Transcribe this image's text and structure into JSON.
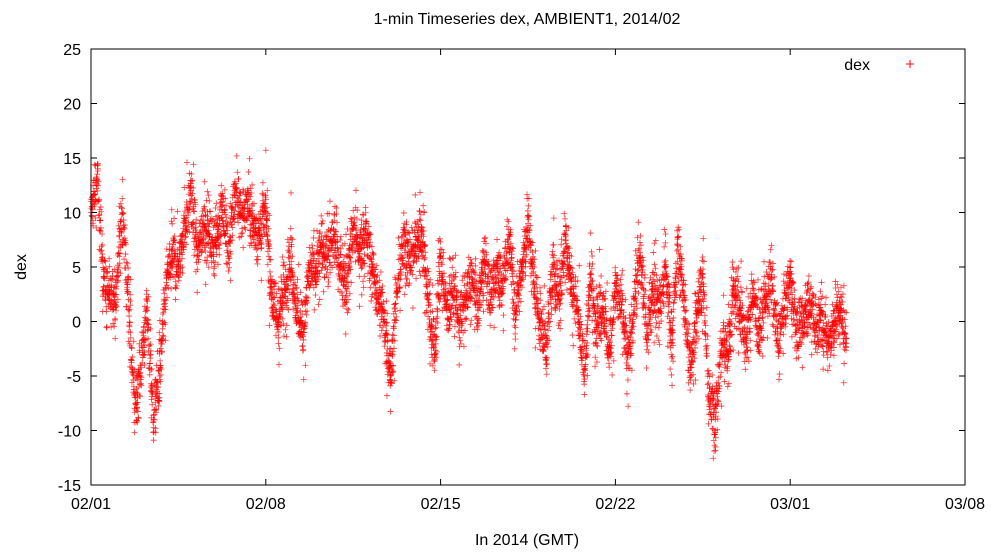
{
  "chart_data": {
    "type": "scatter",
    "title": "1-min Timeseries dex, AMBIENT1, 2014/02",
    "xlabel": "In 2014 (GMT)",
    "ylabel": "dex",
    "ylim": [
      -15,
      25
    ],
    "xlim": [
      "02/01",
      "03/08"
    ],
    "yticks": [
      -15,
      -10,
      -5,
      0,
      5,
      10,
      15,
      20,
      25
    ],
    "xticks": [
      "02/01",
      "02/08",
      "02/15",
      "02/22",
      "03/01",
      "03/08"
    ],
    "grid": false,
    "legend_position": "top-right",
    "marker": "+",
    "series": [
      {
        "name": "dex",
        "color": "#ff0000",
        "x": [
          "02/01 00:00",
          "02/01 06:00",
          "02/01 12:00",
          "02/01 18:00",
          "02/02 00:00",
          "02/02 06:00",
          "02/02 12:00",
          "02/02 18:00",
          "02/03 00:00",
          "02/03 06:00",
          "02/03 12:00",
          "02/03 18:00",
          "02/04 00:00",
          "02/04 06:00",
          "02/04 12:00",
          "02/04 18:00",
          "02/05 00:00",
          "02/05 06:00",
          "02/05 12:00",
          "02/05 18:00",
          "02/06 00:00",
          "02/06 06:00",
          "02/06 12:00",
          "02/06 18:00",
          "02/07 00:00",
          "02/07 06:00",
          "02/07 12:00",
          "02/07 18:00",
          "02/08 00:00",
          "02/08 06:00",
          "02/08 12:00",
          "02/08 18:00",
          "02/09 00:00",
          "02/09 06:00",
          "02/09 12:00",
          "02/09 18:00",
          "02/10 00:00",
          "02/10 06:00",
          "02/10 12:00",
          "02/10 18:00",
          "02/11 00:00",
          "02/11 06:00",
          "02/11 12:00",
          "02/11 18:00",
          "02/12 00:00",
          "02/12 06:00",
          "02/12 12:00",
          "02/12 18:00",
          "02/13 00:00",
          "02/13 06:00",
          "02/13 12:00",
          "02/13 18:00",
          "02/14 00:00",
          "02/14 06:00",
          "02/14 12:00",
          "02/14 18:00",
          "02/15 00:00",
          "02/15 06:00",
          "02/15 12:00",
          "02/15 18:00",
          "02/16 00:00",
          "02/16 06:00",
          "02/16 12:00",
          "02/16 18:00",
          "02/17 00:00",
          "02/17 06:00",
          "02/17 12:00",
          "02/17 18:00",
          "02/18 00:00",
          "02/18 06:00",
          "02/18 12:00",
          "02/18 18:00",
          "02/19 00:00",
          "02/19 06:00",
          "02/19 12:00",
          "02/19 18:00",
          "02/20 00:00",
          "02/20 06:00",
          "02/20 12:00",
          "02/20 18:00",
          "02/21 00:00",
          "02/21 06:00",
          "02/21 12:00",
          "02/21 18:00",
          "02/22 00:00",
          "02/22 06:00",
          "02/22 12:00",
          "02/22 18:00",
          "02/23 00:00",
          "02/23 06:00",
          "02/23 12:00",
          "02/23 18:00",
          "02/24 00:00",
          "02/24 06:00",
          "02/24 12:00",
          "02/24 18:00",
          "02/25 00:00",
          "02/25 06:00",
          "02/25 12:00",
          "02/25 18:00",
          "02/26 00:00",
          "02/26 06:00",
          "02/26 12:00",
          "02/26 18:00",
          "02/27 00:00",
          "02/27 06:00",
          "02/27 12:00",
          "02/27 18:00",
          "02/28 00:00",
          "02/28 06:00",
          "02/28 12:00",
          "02/28 18:00",
          "03/01 00:00",
          "03/01 06:00",
          "03/01 12:00",
          "03/01 18:00",
          "03/02 00:00",
          "03/02 06:00",
          "03/02 12:00",
          "03/02 18:00",
          "03/03 00:00",
          "03/03 06:00"
        ],
        "values": [
          10,
          13,
          4,
          2,
          3,
          10,
          2,
          -8,
          -4,
          1,
          -9,
          -5,
          3,
          6,
          5,
          9,
          12,
          6,
          9,
          8,
          7,
          11,
          6,
          12,
          10,
          11,
          9,
          8,
          10,
          2,
          0,
          3,
          6,
          1,
          -1,
          5,
          4,
          7,
          6,
          8,
          5,
          3,
          9,
          6,
          8,
          5,
          2,
          0,
          -5,
          3,
          7,
          6,
          7,
          8,
          2,
          -3,
          6,
          1,
          3,
          0,
          2,
          4,
          1,
          6,
          2,
          5,
          3,
          8,
          1,
          5,
          9,
          3,
          0,
          -2,
          5,
          2,
          8,
          3,
          1,
          -5,
          4,
          0,
          2,
          -3,
          3,
          1,
          -4,
          2,
          6,
          -1,
          3,
          1,
          5,
          -2,
          7,
          2,
          -5,
          1,
          4,
          -7,
          -9,
          -2,
          -3,
          3,
          1,
          -2,
          3,
          -1,
          2,
          4,
          -2,
          1,
          4,
          -1,
          0,
          2,
          -1,
          1,
          -2,
          0,
          1,
          -2
        ]
      }
    ]
  }
}
